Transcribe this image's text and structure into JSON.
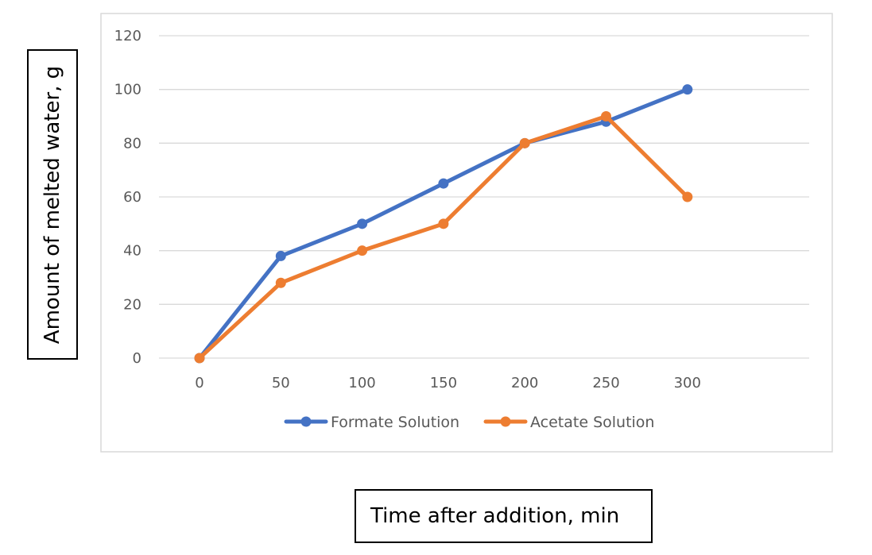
{
  "chart_data": {
    "type": "line",
    "x": [
      0,
      50,
      100,
      150,
      200,
      250,
      300
    ],
    "series": [
      {
        "name": "Formate Solution",
        "color": "#4472C4",
        "values": [
          0,
          38,
          50,
          65,
          80,
          88,
          100
        ]
      },
      {
        "name": "Acetate Solution",
        "color": "#ED7D31",
        "values": [
          0,
          28,
          40,
          50,
          80,
          90,
          60
        ]
      }
    ],
    "xlabel": "Time after addition, min",
    "ylabel": "Amount of melted water, g",
    "xticks": [
      "0",
      "50",
      "100",
      "150",
      "200",
      "250",
      "300"
    ],
    "yticks": [
      "0",
      "20",
      "40",
      "60",
      "80",
      "100",
      "120"
    ],
    "ylim": [
      0,
      120
    ],
    "grid": true,
    "legend_position": "bottom"
  }
}
